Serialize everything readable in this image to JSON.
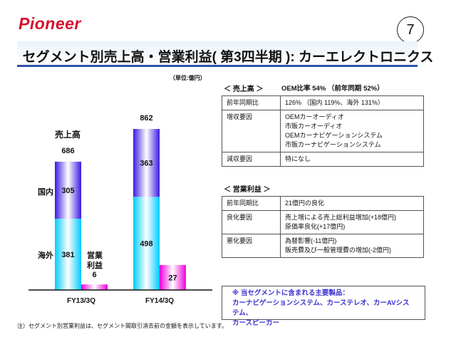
{
  "header": {
    "logo": "Pioneer",
    "page_number": "7",
    "title": "セグメント別売上高・営業利益( 第3四半期 ): カーエレクトロニクス"
  },
  "chart_data": {
    "type": "bar",
    "title": "",
    "unit": "（単位:億円）",
    "categories": [
      "FY13/3Q",
      "FY14/3Q"
    ],
    "sales_label": "売上高",
    "profit_label": "営業\n利益",
    "series": [
      {
        "name": "海外",
        "values": [
          381,
          498
        ],
        "color": "#00ccff"
      },
      {
        "name": "国内",
        "values": [
          305,
          363
        ],
        "color": "#3a1ae0"
      }
    ],
    "totals": [
      686,
      862
    ],
    "operating_profit": {
      "name": "営業利益",
      "values": [
        6,
        27
      ],
      "color": "#ee00dd"
    },
    "legend_labels": {
      "domestic": "国内",
      "overseas": "海外",
      "profit_line1": "営業",
      "profit_line2": "利益"
    }
  },
  "sales": {
    "heading": "＜  売上高  ＞",
    "oem": "OEM比率 54% （前年同期  52%）",
    "rows": [
      {
        "key": "前年同期比",
        "lines": [
          "126% （国内 119%、海外 131%）"
        ]
      },
      {
        "key": "増収要因",
        "lines": [
          "OEMカーオーディオ",
          "市販カーオーディオ",
          "OEMカーナビゲーションシステム",
          "市販カーナビゲーションシステム"
        ]
      },
      {
        "key": "減収要因",
        "lines": [
          "特になし"
        ]
      }
    ]
  },
  "profit": {
    "heading": "＜  営業利益  ＞",
    "rows": [
      {
        "key": "前年同期比",
        "lines": [
          "21億円の良化"
        ]
      },
      {
        "key": "良化要因",
        "lines": [
          "売上増による売上総利益増加(+18億円)",
          "原価率良化(+17億円)"
        ]
      },
      {
        "key": "悪化要因",
        "lines": [
          "為替影響(-11億円)",
          "販売費及び一般管理費の増加(-2億円)"
        ]
      }
    ]
  },
  "note": {
    "line1": "※  当セグメントに含まれる主要製品：",
    "line2": "カーナビゲーションシステム、カーステレオ、カーAVシステム、",
    "line3": "カースピーカー"
  },
  "footnote": "注）セグメント別営業利益は、セグメント間取引消去前の金額を表示しています。"
}
